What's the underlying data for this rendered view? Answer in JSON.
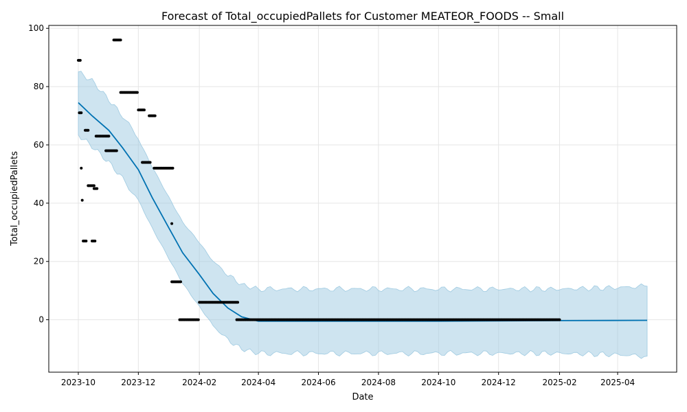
{
  "chart_data": {
    "type": "line",
    "title": "Forecast of Total_occupiedPallets for Customer MEATEOR_FOODS -- Small",
    "xlabel": "Date",
    "ylabel": "Total_occupiedPallets",
    "x_axis_type": "date",
    "xlim": [
      "2023-09-01",
      "2025-05-31"
    ],
    "ylim": [
      -18,
      101
    ],
    "x_ticks": [
      {
        "date": "2023-10-01",
        "label": "2023-10"
      },
      {
        "date": "2023-12-01",
        "label": "2023-12"
      },
      {
        "date": "2024-02-01",
        "label": "2024-02"
      },
      {
        "date": "2024-04-01",
        "label": "2024-04"
      },
      {
        "date": "2024-06-01",
        "label": "2024-06"
      },
      {
        "date": "2024-08-01",
        "label": "2024-08"
      },
      {
        "date": "2024-10-01",
        "label": "2024-10"
      },
      {
        "date": "2024-12-01",
        "label": "2024-12"
      },
      {
        "date": "2025-02-01",
        "label": "2025-02"
      },
      {
        "date": "2025-04-01",
        "label": "2025-04"
      }
    ],
    "y_ticks": [
      0,
      20,
      40,
      60,
      80,
      100
    ],
    "y_tick_labels": [
      "0",
      "20",
      "40",
      "60",
      "80",
      "100"
    ],
    "grid": true,
    "colors": {
      "forecast_line": "#0072B2",
      "interval_fill": "#9ecae1",
      "observations": "#000000",
      "grid": "#e5e5e5"
    },
    "series": [
      {
        "kind": "observed_points",
        "segments": [
          {
            "start": "2023-10-01",
            "end": "2023-10-03",
            "y": 89
          },
          {
            "start": "2023-10-02",
            "end": "2023-10-04",
            "y": 71
          },
          {
            "start": "2023-10-04",
            "end": "2023-10-04",
            "y": 52
          },
          {
            "start": "2023-10-05",
            "end": "2023-10-05",
            "y": 41
          },
          {
            "start": "2023-10-06",
            "end": "2023-10-09",
            "y": 27
          },
          {
            "start": "2023-10-08",
            "end": "2023-10-11",
            "y": 65
          },
          {
            "start": "2023-10-11",
            "end": "2023-10-17",
            "y": 46
          },
          {
            "start": "2023-10-15",
            "end": "2023-10-18",
            "y": 27
          },
          {
            "start": "2023-10-17",
            "end": "2023-10-20",
            "y": 45
          },
          {
            "start": "2023-10-19",
            "end": "2023-11-01",
            "y": 63
          },
          {
            "start": "2023-10-29",
            "end": "2023-11-09",
            "y": 58
          },
          {
            "start": "2023-11-06",
            "end": "2023-11-13",
            "y": 96
          },
          {
            "start": "2023-11-13",
            "end": "2023-11-30",
            "y": 78
          },
          {
            "start": "2023-12-01",
            "end": "2023-12-07",
            "y": 72
          },
          {
            "start": "2023-12-05",
            "end": "2023-12-13",
            "y": 54
          },
          {
            "start": "2023-12-12",
            "end": "2023-12-18",
            "y": 70
          },
          {
            "start": "2023-12-17",
            "end": "2024-01-05",
            "y": 52
          },
          {
            "start": "2024-01-04",
            "end": "2024-01-04",
            "y": 33
          },
          {
            "start": "2024-01-04",
            "end": "2024-01-13",
            "y": 13
          },
          {
            "start": "2024-01-12",
            "end": "2024-01-31",
            "y": 0
          },
          {
            "start": "2024-02-01",
            "end": "2024-03-11",
            "y": 6
          },
          {
            "start": "2024-03-10",
            "end": "2025-02-01",
            "y": 0
          }
        ]
      },
      {
        "kind": "forecast",
        "name": "",
        "points": [
          [
            "2023-10-01",
            74.5
          ],
          [
            "2023-10-15",
            70.0
          ],
          [
            "2023-11-01",
            65.0
          ],
          [
            "2023-11-15",
            59.0
          ],
          [
            "2023-12-01",
            51.5
          ],
          [
            "2023-12-15",
            42.0
          ],
          [
            "2024-01-01",
            31.5
          ],
          [
            "2024-01-15",
            23.0
          ],
          [
            "2024-02-01",
            15.5
          ],
          [
            "2024-02-15",
            9.0
          ],
          [
            "2024-03-01",
            4.0
          ],
          [
            "2024-03-15",
            1.0
          ],
          [
            "2024-04-01",
            -0.5
          ],
          [
            "2024-06-01",
            -0.5
          ],
          [
            "2024-10-01",
            -0.5
          ],
          [
            "2025-02-01",
            -0.3
          ],
          [
            "2025-05-01",
            -0.2
          ]
        ]
      },
      {
        "kind": "uncertainty_interval",
        "lower_upper": [
          [
            "2023-10-01",
            63.5,
            85.0
          ],
          [
            "2023-10-15",
            59.5,
            82.0
          ],
          [
            "2023-11-01",
            54.0,
            75.5
          ],
          [
            "2023-11-15",
            48.5,
            70.0
          ],
          [
            "2023-12-01",
            41.0,
            62.0
          ],
          [
            "2023-12-15",
            31.5,
            52.5
          ],
          [
            "2024-01-01",
            21.0,
            42.0
          ],
          [
            "2024-01-15",
            12.5,
            33.5
          ],
          [
            "2024-02-01",
            4.5,
            26.5
          ],
          [
            "2024-02-15",
            -2.0,
            20.0
          ],
          [
            "2024-03-01",
            -7.0,
            15.5
          ],
          [
            "2024-03-15",
            -10.0,
            12.0
          ],
          [
            "2024-04-01",
            -11.5,
            10.5
          ],
          [
            "2024-06-01",
            -11.5,
            10.5
          ],
          [
            "2024-08-01",
            -11.5,
            10.5
          ],
          [
            "2024-10-01",
            -11.5,
            10.5
          ],
          [
            "2024-12-01",
            -11.5,
            10.5
          ],
          [
            "2025-02-01",
            -11.5,
            10.5
          ],
          [
            "2025-04-01",
            -12.0,
            11.0
          ],
          [
            "2025-05-01",
            -12.5,
            11.5
          ]
        ]
      }
    ]
  }
}
